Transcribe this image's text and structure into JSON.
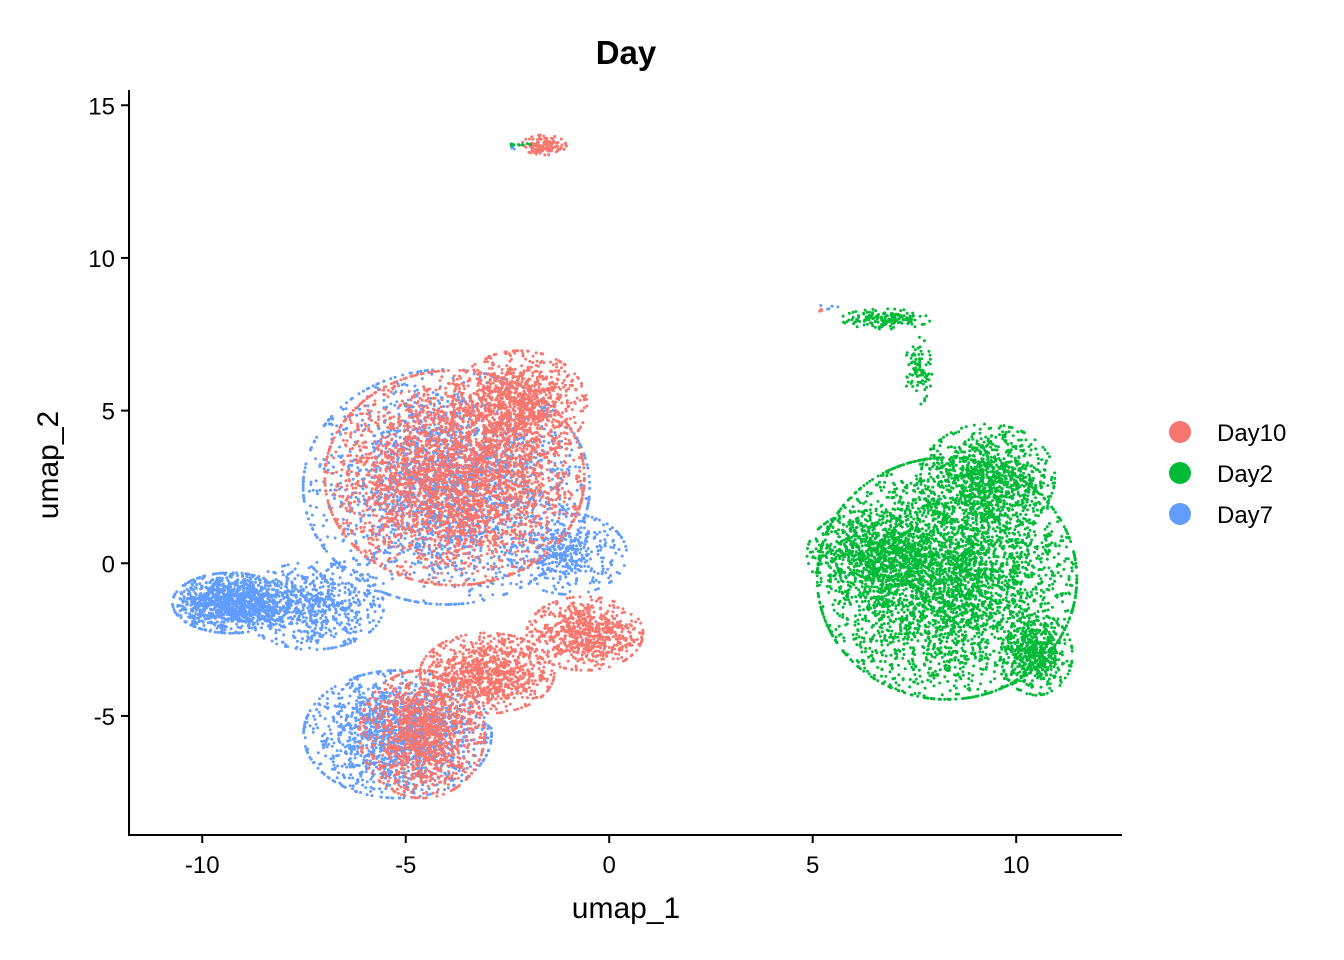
{
  "chart_data": {
    "type": "scatter",
    "title": "Day",
    "xlabel": "umap_1",
    "ylabel": "umap_2",
    "xlim": [
      -11.8,
      12.6
    ],
    "ylim": [
      -8.9,
      15.5
    ],
    "x_ticks": [
      -10,
      -5,
      0,
      5,
      10
    ],
    "y_ticks": [
      -5,
      0,
      5,
      10,
      15
    ],
    "x_tick_labels": [
      "-10",
      "-5",
      "0",
      "5",
      "10"
    ],
    "y_tick_labels": [
      "-5",
      "0",
      "5",
      "10",
      "15"
    ],
    "grid": false,
    "legend_position": "right",
    "legend": [
      {
        "name": "Day10",
        "color": "#F8766D"
      },
      {
        "name": "Day2",
        "color": "#00BA38"
      },
      {
        "name": "Day7",
        "color": "#619CFF"
      }
    ],
    "series": [
      {
        "name": "Day7",
        "color": "#619CFF",
        "clusters": [
          {
            "cx": -4.0,
            "cy": 2.5,
            "rx": 3.2,
            "ry": 3.5,
            "n": 2200
          },
          {
            "cx": -9.3,
            "cy": -1.3,
            "rx": 1.3,
            "ry": 0.9,
            "n": 1200
          },
          {
            "cx": -7.3,
            "cy": -1.4,
            "rx": 1.6,
            "ry": 1.3,
            "n": 700
          },
          {
            "cx": -5.2,
            "cy": -5.6,
            "rx": 2.1,
            "ry": 1.9,
            "n": 1500
          },
          {
            "cx": -1.0,
            "cy": 0.3,
            "rx": 1.3,
            "ry": 1.2,
            "n": 400
          },
          {
            "cx": -2.4,
            "cy": 13.6,
            "rx": 0.1,
            "ry": 0.1,
            "n": 3
          },
          {
            "cx": 5.4,
            "cy": 8.4,
            "rx": 0.2,
            "ry": 0.1,
            "n": 6
          }
        ]
      },
      {
        "name": "Day10",
        "color": "#F8766D",
        "clusters": [
          {
            "cx": -3.8,
            "cy": 2.8,
            "rx": 2.9,
            "ry": 3.2,
            "n": 3200
          },
          {
            "cx": -2.2,
            "cy": 5.2,
            "rx": 1.5,
            "ry": 1.6,
            "n": 900
          },
          {
            "cx": -4.6,
            "cy": -5.6,
            "rx": 1.4,
            "ry": 1.9,
            "n": 1200
          },
          {
            "cx": -3.0,
            "cy": -3.6,
            "rx": 1.5,
            "ry": 1.2,
            "n": 900
          },
          {
            "cx": -0.6,
            "cy": -2.3,
            "rx": 1.3,
            "ry": 1.1,
            "n": 700
          },
          {
            "cx": -1.6,
            "cy": 13.7,
            "rx": 0.5,
            "ry": 0.3,
            "n": 120
          },
          {
            "cx": 5.2,
            "cy": 8.3,
            "rx": 0.05,
            "ry": 0.05,
            "n": 4
          }
        ]
      },
      {
        "name": "Day2",
        "color": "#00BA38",
        "clusters": [
          {
            "cx": 8.3,
            "cy": -0.5,
            "rx": 2.9,
            "ry": 3.6,
            "n": 3800
          },
          {
            "cx": 9.3,
            "cy": 2.8,
            "rx": 1.5,
            "ry": 1.6,
            "n": 900
          },
          {
            "cx": 6.4,
            "cy": 0.3,
            "rx": 1.4,
            "ry": 1.3,
            "n": 700
          },
          {
            "cx": 10.5,
            "cy": -3.0,
            "rx": 0.8,
            "ry": 1.2,
            "n": 500
          },
          {
            "cx": 6.8,
            "cy": 8.0,
            "rx": 1.0,
            "ry": 0.3,
            "n": 160
          },
          {
            "cx": 7.6,
            "cy": 6.3,
            "rx": 0.3,
            "ry": 1.0,
            "n": 90
          },
          {
            "cx": -2.2,
            "cy": 13.7,
            "rx": 0.3,
            "ry": 0.05,
            "n": 10
          }
        ]
      }
    ]
  }
}
